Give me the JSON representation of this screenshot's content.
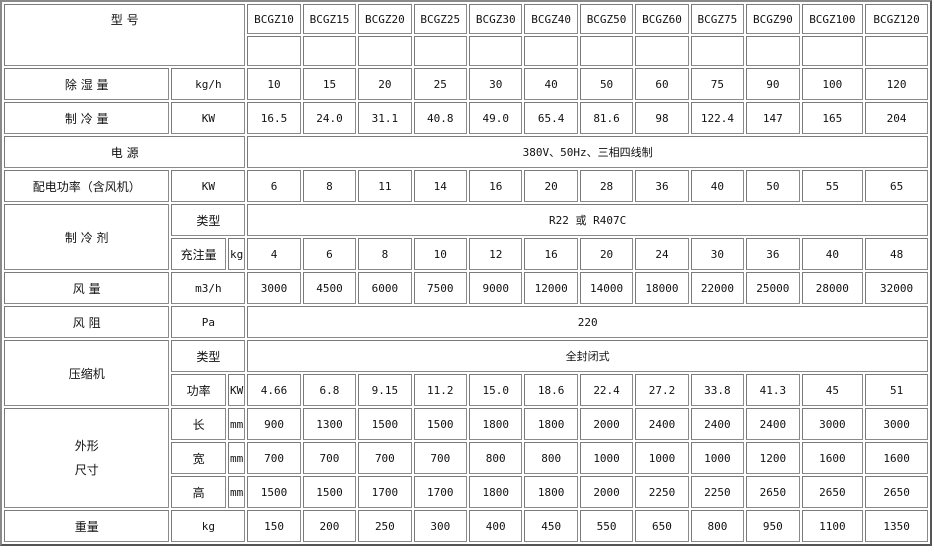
{
  "header": {
    "title": "型 号",
    "models": [
      "BCGZ10",
      "BCGZ15",
      "BCGZ20",
      "BCGZ25",
      "BCGZ30",
      "BCGZ40",
      "BCGZ50",
      "BCGZ60",
      "BCGZ75",
      "BCGZ90",
      "BCGZ100",
      "BCGZ120"
    ]
  },
  "rows": [
    {
      "id": "dehumidification",
      "label": "除 湿 量",
      "unit": "kg/h",
      "values": [
        "10",
        "15",
        "20",
        "25",
        "30",
        "40",
        "50",
        "60",
        "75",
        "90",
        "100",
        "120"
      ]
    },
    {
      "id": "cooling-capacity",
      "label": "制 冷 量",
      "unit": "KW",
      "values": [
        "16.5",
        "24.0",
        "31.1",
        "40.8",
        "49.0",
        "65.4",
        "81.6",
        "98",
        "122.4",
        "147",
        "165",
        "204"
      ]
    },
    {
      "id": "power-supply",
      "label": "电 源",
      "span": "380V、50Hz、三相四线制"
    },
    {
      "id": "distribution-power",
      "label": "配电功率（含风机）",
      "unit": "KW",
      "values": [
        "6",
        "8",
        "11",
        "14",
        "16",
        "20",
        "28",
        "36",
        "40",
        "50",
        "55",
        "65"
      ]
    },
    {
      "id": "refrigerant",
      "label": "制 冷 剂",
      "subrows": [
        {
          "sub": "类型",
          "span": "R22 或 R407C"
        },
        {
          "sub": "充注量",
          "unit": "kg",
          "values": [
            "4",
            "6",
            "8",
            "10",
            "12",
            "16",
            "20",
            "24",
            "30",
            "36",
            "40",
            "48"
          ]
        }
      ]
    },
    {
      "id": "airflow",
      "label": "风 量",
      "unit": "m3/h",
      "values": [
        "3000",
        "4500",
        "6000",
        "7500",
        "9000",
        "12000",
        "14000",
        "18000",
        "22000",
        "25000",
        "28000",
        "32000"
      ]
    },
    {
      "id": "air-resistance",
      "label": "风 阻",
      "unit": "Pa",
      "span": "220"
    },
    {
      "id": "compressor",
      "label": "压缩机",
      "subrows": [
        {
          "sub": "类型",
          "span": "全封闭式"
        },
        {
          "sub": "功率",
          "unit": "KW",
          "values": [
            "4.66",
            "6.8",
            "9.15",
            "11.2",
            "15.0",
            "18.6",
            "22.4",
            "27.2",
            "33.8",
            "41.3",
            "45",
            "51"
          ]
        }
      ]
    },
    {
      "id": "dimensions",
      "label": "外形\n尺寸",
      "subrows": [
        {
          "sub": "长",
          "unit": "mm",
          "values": [
            "900",
            "1300",
            "1500",
            "1500",
            "1800",
            "1800",
            "2000",
            "2400",
            "2400",
            "2400",
            "3000",
            "3000"
          ]
        },
        {
          "sub": "宽",
          "unit": "mm",
          "values": [
            "700",
            "700",
            "700",
            "700",
            "800",
            "800",
            "1000",
            "1000",
            "1000",
            "1200",
            "1600",
            "1600"
          ]
        },
        {
          "sub": "高",
          "unit": "mm",
          "values": [
            "1500",
            "1500",
            "1700",
            "1700",
            "1800",
            "1800",
            "2000",
            "2250",
            "2250",
            "2650",
            "2650",
            "2650"
          ]
        }
      ]
    },
    {
      "id": "weight",
      "label": "重量",
      "unit": "kg",
      "values": [
        "150",
        "200",
        "250",
        "300",
        "400",
        "450",
        "550",
        "650",
        "800",
        "950",
        "1100",
        "1350"
      ]
    }
  ]
}
